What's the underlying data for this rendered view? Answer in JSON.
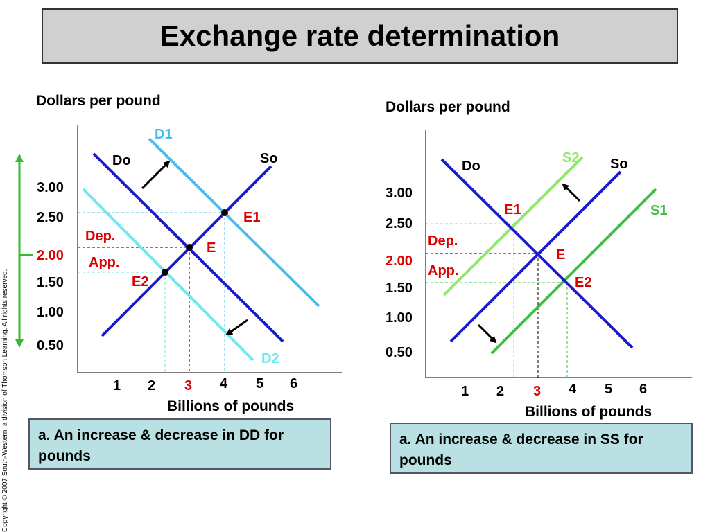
{
  "title": "Exchange rate determination",
  "copyright": "Copyright © 2007 South-Western, a division of Thomson Learning. All rights reserved.",
  "colors": {
    "original": "#1a1acc",
    "demand_shift": "#4dbbe8",
    "demand_decrease": "#6fe8f0",
    "supply_increase": "#8fe86a",
    "supply_shift": "#3cc040",
    "red_label": "#dd0000",
    "green_arrow": "#33bb33",
    "caption_bg": "#b9e0e3"
  },
  "left_panel": {
    "ylabel": "Dollars per pound",
    "xlabel": "Billions of pounds",
    "y_ticks": [
      "3.00",
      "2.50",
      "2.00",
      "1.50",
      "1.00",
      "0.50"
    ],
    "x_ticks": [
      "1",
      "2",
      "3",
      "4",
      "5",
      "6"
    ],
    "highlight_y": "2.00",
    "highlight_x": "3",
    "curves": {
      "do": "Do",
      "so": "So",
      "d1": "D1",
      "d2": "D2"
    },
    "points": {
      "e": "E",
      "e1": "E1",
      "e2": "E2"
    },
    "notes": {
      "dep": "Dep.",
      "app": "App."
    },
    "caption": "a. An increase & decrease in DD for pounds"
  },
  "right_panel": {
    "ylabel": "Dollars per pound",
    "xlabel": "Billions of pounds",
    "y_ticks": [
      "3.00",
      "2.50",
      "2.00",
      "1.50",
      "1.00",
      "0.50"
    ],
    "x_ticks": [
      "1",
      "2",
      "3",
      "4",
      "5",
      "6"
    ],
    "highlight_y": "2.00",
    "highlight_x": "3",
    "curves": {
      "do": "Do",
      "so": "So",
      "s1": "S1",
      "s2": "S2"
    },
    "points": {
      "e": "E",
      "e1": "E1",
      "e2": "E2"
    },
    "notes": {
      "dep": "Dep.",
      "app": "App."
    },
    "caption": "a. An increase & decrease in SS for pounds"
  }
}
